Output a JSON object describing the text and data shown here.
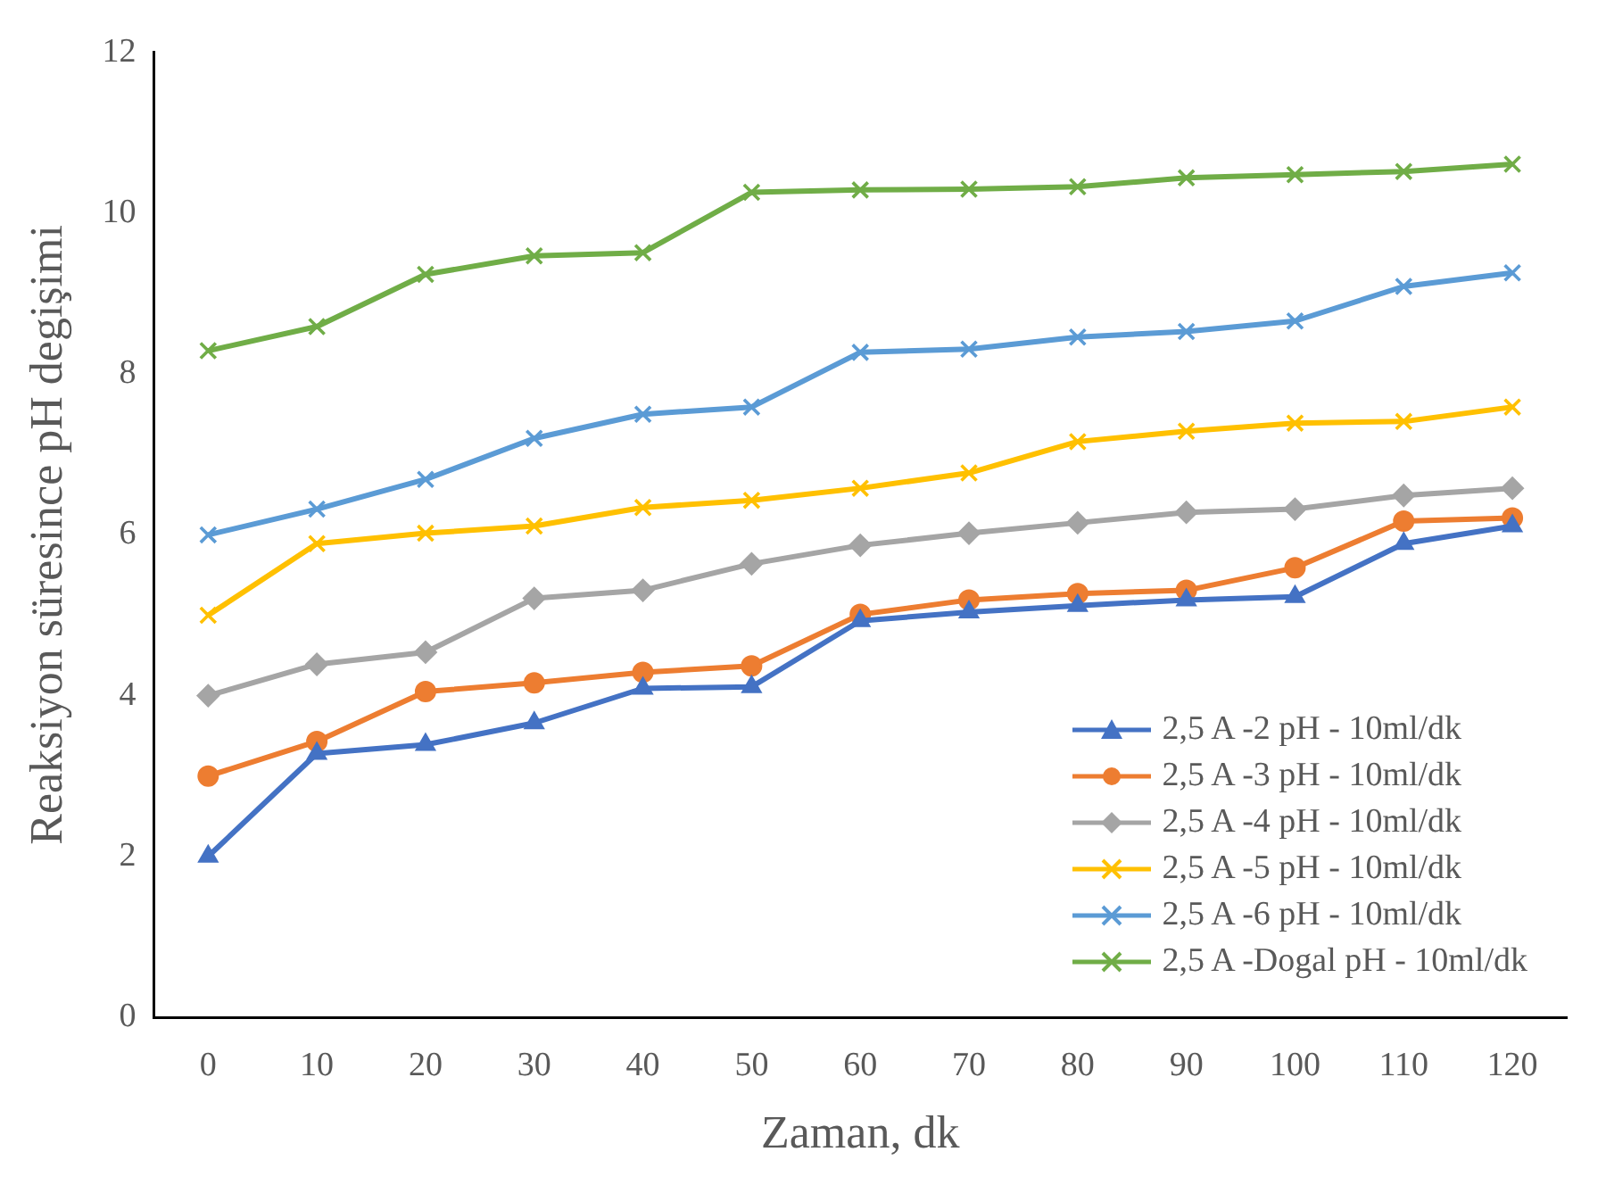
{
  "chart_data": {
    "type": "line",
    "xlabel": "Zaman, dk",
    "ylabel": "Reaksiyon süresince pH degişimi",
    "categories": [
      "0",
      "10",
      "20",
      "30",
      "40",
      "50",
      "60",
      "70",
      "80",
      "90",
      "100",
      "110",
      "120"
    ],
    "ylim": [
      0,
      12
    ],
    "yticks": [
      0,
      2,
      4,
      6,
      8,
      10,
      12
    ],
    "grid": false,
    "legend": "bottom right",
    "line_style": "solid",
    "series": [
      {
        "name": "2,5 A -2 pH - 10ml/dk",
        "color": "#4472c4",
        "marker": "triangle",
        "values": [
          2.0,
          3.28,
          3.39,
          3.66,
          4.09,
          4.11,
          4.93,
          5.04,
          5.12,
          5.19,
          5.23,
          5.89,
          6.11
        ]
      },
      {
        "name": "2,5 A -3 pH - 10ml/dk",
        "color": "#ed7d31",
        "marker": "circle",
        "values": [
          3.0,
          3.43,
          4.05,
          4.16,
          4.29,
          4.37,
          5.01,
          5.19,
          5.27,
          5.31,
          5.59,
          6.17,
          6.21
        ]
      },
      {
        "name": "2,5 A -4 pH - 10ml/dk",
        "color": "#a5a5a5",
        "marker": "diamond",
        "values": [
          4.0,
          4.39,
          4.54,
          5.21,
          5.31,
          5.64,
          5.87,
          6.02,
          6.15,
          6.28,
          6.32,
          6.49,
          6.58
        ]
      },
      {
        "name": "2,5 A -5 pH - 10ml/dk",
        "color": "#ffc000",
        "marker": "cross",
        "values": [
          5.0,
          5.89,
          6.02,
          6.11,
          6.34,
          6.43,
          6.58,
          6.77,
          7.16,
          7.29,
          7.39,
          7.41,
          7.59
        ]
      },
      {
        "name": "2,5 A -6 pH - 10ml/dk",
        "color": "#5b9bd5",
        "marker": "cross",
        "values": [
          6.0,
          6.32,
          6.69,
          7.2,
          7.5,
          7.59,
          8.27,
          8.31,
          8.46,
          8.53,
          8.66,
          9.09,
          9.26
        ]
      },
      {
        "name": "2,5 A -Dogal pH - 10ml/dk",
        "color": "#70ad47",
        "marker": "cross",
        "values": [
          8.29,
          8.59,
          9.24,
          9.47,
          9.51,
          10.26,
          10.29,
          10.3,
          10.33,
          10.44,
          10.48,
          10.52,
          10.61
        ]
      }
    ]
  }
}
